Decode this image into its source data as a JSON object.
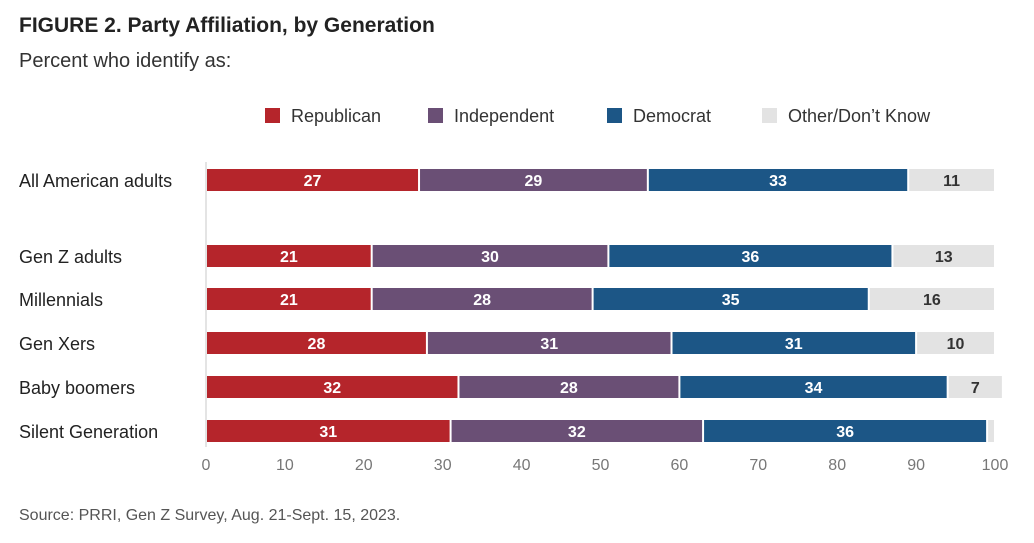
{
  "header": {
    "title": "FIGURE 2. Party Affiliation, by Generation",
    "subtitle": "Percent who identify as:"
  },
  "footer": {
    "source": "Source: PRRI, Gen Z Survey, Aug. 21-Sept. 15, 2023."
  },
  "chart_data": {
    "type": "bar",
    "orientation": "horizontal",
    "stacked": true,
    "title": "FIGURE 2. Party Affiliation, by Generation",
    "subtitle": "Percent who identify as:",
    "xlabel": "",
    "ylabel": "",
    "xlim": [
      0,
      100
    ],
    "x_ticks": [
      0,
      10,
      20,
      30,
      40,
      50,
      60,
      70,
      80,
      90,
      100
    ],
    "legend_position": "top",
    "grid": false,
    "categories": [
      "All American adults",
      "Gen Z adults",
      "Millennials",
      "Gen Xers",
      "Baby boomers",
      "Silent Generation"
    ],
    "series": [
      {
        "name": "Republican",
        "color": "#b5252b",
        "values": [
          27,
          21,
          21,
          28,
          32,
          31
        ],
        "labels": [
          "27",
          "21",
          "21",
          "28",
          "32",
          "31"
        ]
      },
      {
        "name": "Independent",
        "color": "#6a4f75",
        "values": [
          29,
          30,
          28,
          31,
          28,
          32
        ],
        "labels": [
          "29",
          "30",
          "28",
          "31",
          "28",
          "32"
        ]
      },
      {
        "name": "Democrat",
        "color": "#1c5686",
        "values": [
          33,
          36,
          35,
          31,
          34,
          36
        ],
        "labels": [
          "33",
          "36",
          "35",
          "31",
          "34",
          "36"
        ]
      },
      {
        "name": "Other/Don’t Know",
        "color": "#e3e3e3",
        "values": [
          11,
          13,
          16,
          10,
          7,
          1
        ],
        "labels": [
          "11",
          "13",
          "16",
          "10",
          "7",
          ""
        ]
      }
    ]
  }
}
